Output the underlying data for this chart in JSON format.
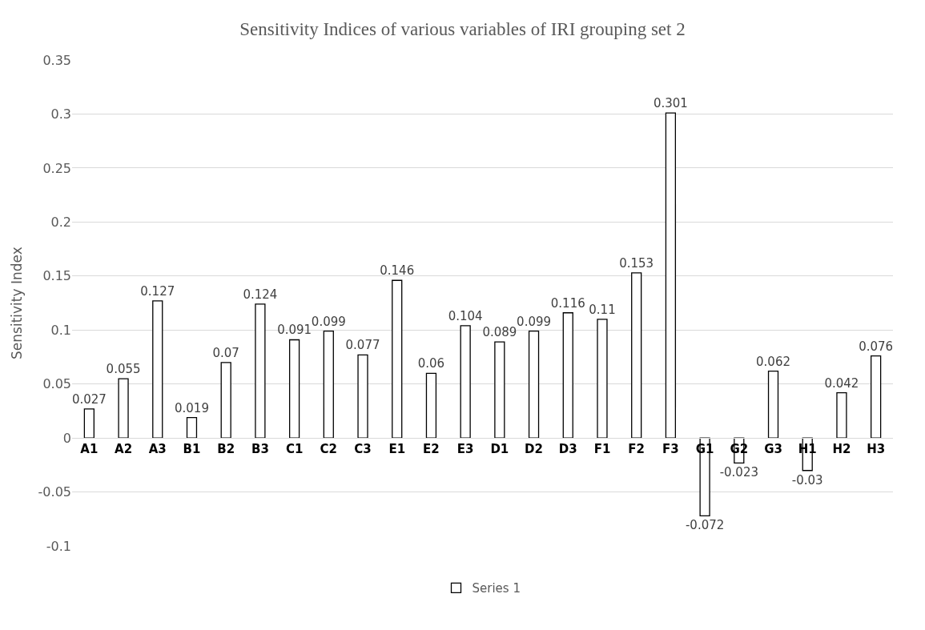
{
  "chart_data": {
    "type": "bar",
    "title": "Sensitivity Indices of various variables of IRI grouping set 2",
    "ylabel": "Sensitivity Index",
    "categories": [
      "A1",
      "A2",
      "A3",
      "B1",
      "B2",
      "B3",
      "C1",
      "C2",
      "C3",
      "E1",
      "E2",
      "E3",
      "D1",
      "D2",
      "D3",
      "F1",
      "F2",
      "F3",
      "G1",
      "G2",
      "G3",
      "H1",
      "H2",
      "H3"
    ],
    "series": [
      {
        "name": "Series 1",
        "color": "#ffffff",
        "values": [
          0.027,
          0.055,
          0.127,
          0.019,
          0.07,
          0.124,
          0.091,
          0.099,
          0.077,
          0.146,
          0.06,
          0.104,
          0.089,
          0.099,
          0.116,
          0.11,
          0.153,
          0.301,
          -0.072,
          -0.023,
          0.062,
          -0.03,
          0.042,
          0.076
        ]
      }
    ],
    "ylim": [
      -0.1,
      0.35
    ],
    "yticks": [
      -0.1,
      -0.05,
      0,
      0.05,
      0.1,
      0.15,
      0.2,
      0.25,
      0.3,
      0.35
    ],
    "grid": "y",
    "legend": "bottom",
    "data_labels": true
  }
}
